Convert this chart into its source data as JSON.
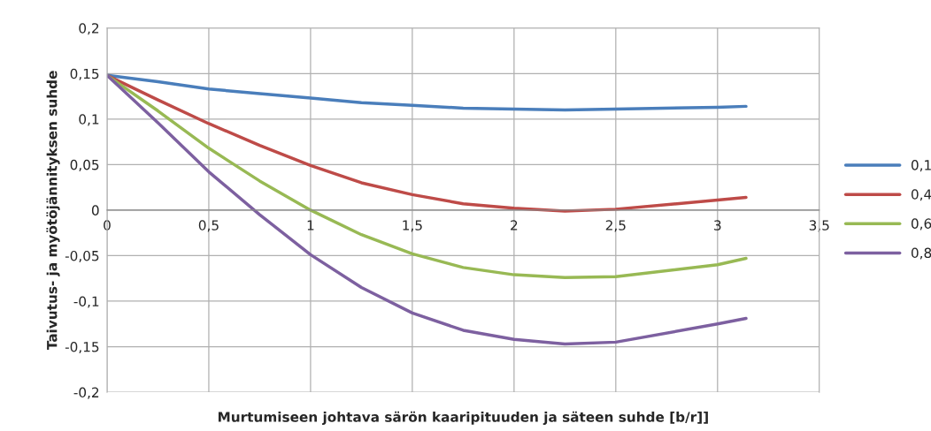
{
  "chart_data": {
    "type": "line",
    "xlabel": "Murtumiseen johtava särön kaaripituuden ja säteen suhde [b/r]]",
    "ylabel": "Taivutus- ja myötöjännityksen suhde",
    "x": [
      0,
      0.25,
      0.5,
      0.75,
      1,
      1.25,
      1.5,
      1.75,
      2,
      2.25,
      2.5,
      3,
      3.14
    ],
    "series": [
      {
        "name": "0,1",
        "color": "#4a7ebb",
        "values": [
          0.148,
          0.141,
          0.133,
          0.128,
          0.123,
          0.118,
          0.115,
          0.112,
          0.111,
          0.11,
          0.111,
          0.113,
          0.114
        ]
      },
      {
        "name": "0,4",
        "color": "#be4b48",
        "values": [
          0.148,
          0.121,
          0.095,
          0.071,
          0.049,
          0.03,
          0.017,
          0.007,
          0.002,
          -0.001,
          0.001,
          0.011,
          0.014
        ]
      },
      {
        "name": "0,6",
        "color": "#98b954",
        "values": [
          0.148,
          0.109,
          0.068,
          0.032,
          0.0,
          -0.027,
          -0.048,
          -0.063,
          -0.071,
          -0.074,
          -0.073,
          -0.06,
          -0.053
        ]
      },
      {
        "name": "0,8",
        "color": "#7d60a0",
        "values": [
          0.148,
          0.096,
          0.042,
          -0.005,
          -0.049,
          -0.085,
          -0.113,
          -0.132,
          -0.142,
          -0.147,
          -0.145,
          -0.125,
          -0.119
        ]
      }
    ],
    "xlim": [
      0,
      3.5
    ],
    "ylim": [
      -0.2,
      0.2
    ],
    "xticks": [
      0,
      {
        "value": 0.5,
        "label": "0,5"
      },
      1,
      {
        "value": 1.5,
        "label": "1,5"
      },
      2,
      {
        "value": 2.5,
        "label": "2,5"
      },
      3,
      {
        "value": 3.5,
        "label": "3,5"
      }
    ],
    "yticks": [
      {
        "value": -0.2,
        "label": "-0,2"
      },
      {
        "value": -0.15,
        "label": "-0,15"
      },
      {
        "value": -0.1,
        "label": "-0,1"
      },
      {
        "value": -0.05,
        "label": "-0,05"
      },
      0,
      {
        "value": 0.05,
        "label": "0,05"
      },
      {
        "value": 0.1,
        "label": "0,1"
      },
      {
        "value": 0.15,
        "label": "0,15"
      },
      {
        "value": 0.2,
        "label": "0,2"
      }
    ],
    "grid": true,
    "legend": "right",
    "marker": "none",
    "line_style": "solid"
  }
}
